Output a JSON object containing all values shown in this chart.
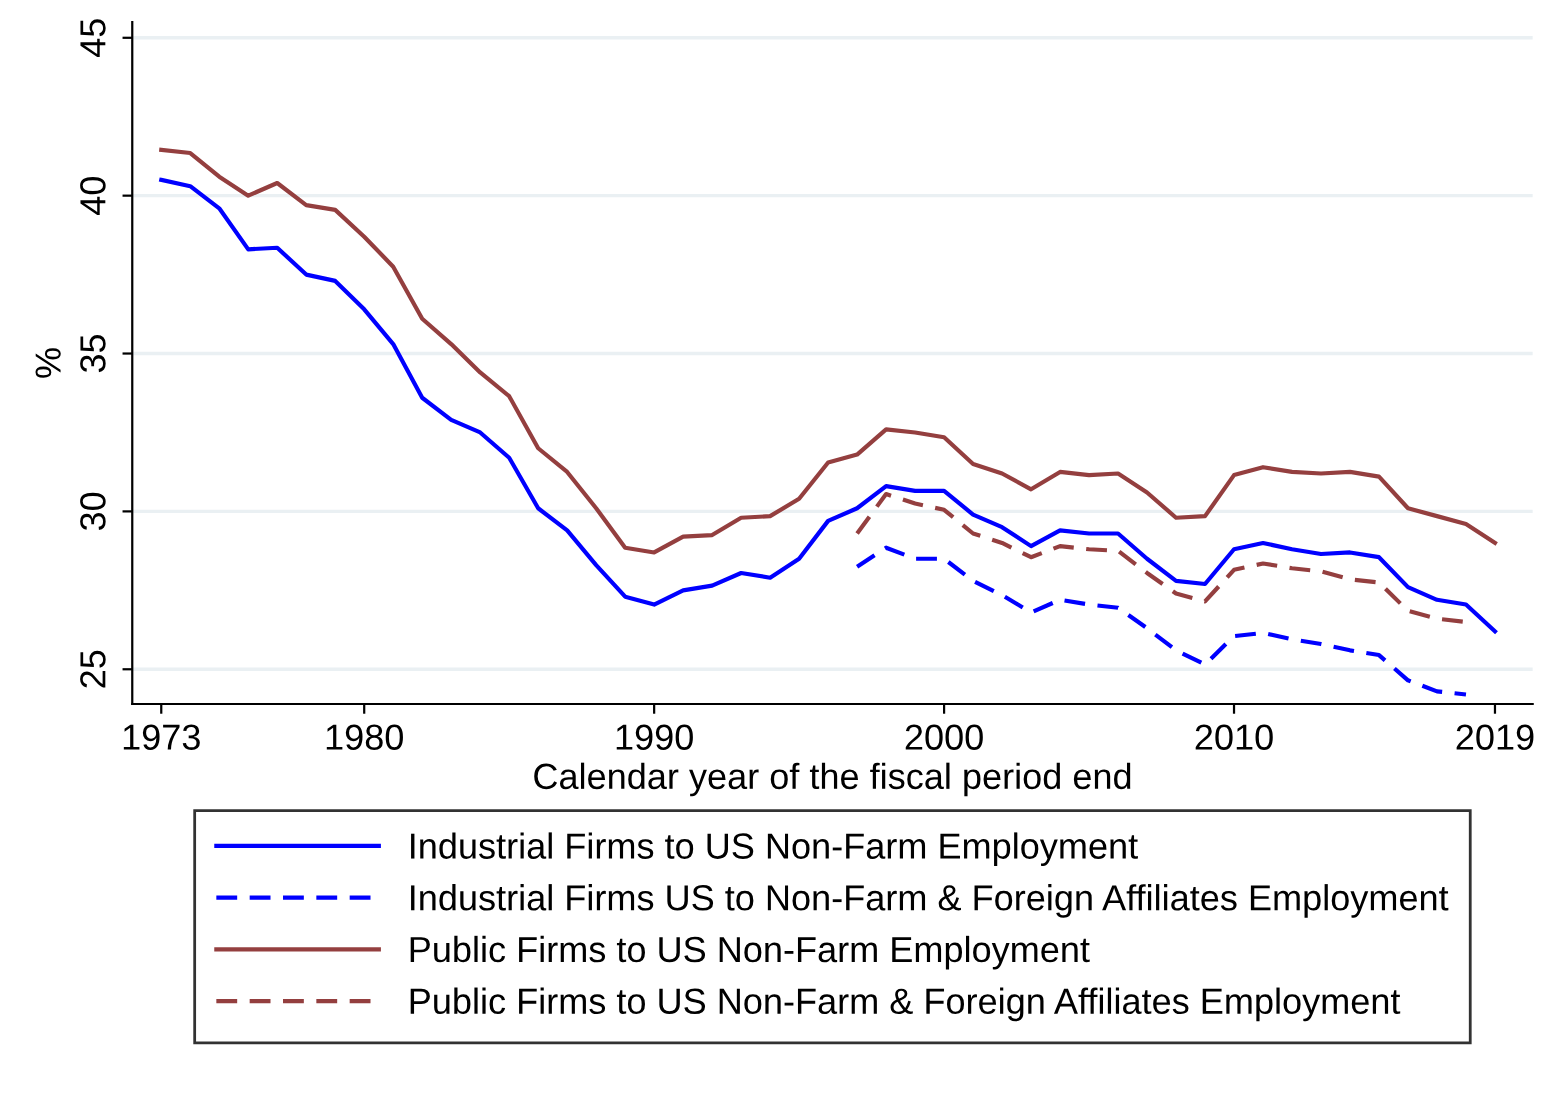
{
  "chart_data": {
    "type": "line",
    "xlabel": "Calendar year of the fiscal period end",
    "ylabel": "%",
    "xlim": [
      1972,
      2020.3
    ],
    "ylim": [
      23.9,
      45.5
    ],
    "xticks": [
      1973,
      1980,
      1990,
      2000,
      2010,
      2019
    ],
    "yticks": [
      25,
      30,
      35,
      40,
      45
    ],
    "grid": "y",
    "legend": "bottom",
    "marker": "none",
    "series": [
      {
        "name": "Industrial Firms to US Non-Farm Employment",
        "color": "#0000ff",
        "line_style": "solid",
        "x": [
          1973,
          1974,
          1975,
          1976,
          1977,
          1978,
          1979,
          1980,
          1981,
          1982,
          1983,
          1984,
          1985,
          1986,
          1987,
          1988,
          1989,
          1990,
          1991,
          1992,
          1993,
          1994,
          1995,
          1996,
          1997,
          1998,
          1999,
          2000,
          2001,
          2002,
          2003,
          2004,
          2005,
          2006,
          2007,
          2008,
          2009,
          2010,
          2011,
          2012,
          2013,
          2014,
          2015,
          2016,
          2017,
          2018,
          2019
        ],
        "values": [
          40.5,
          40.3,
          39.6,
          38.3,
          38.35,
          37.5,
          37.3,
          36.4,
          35.3,
          33.6,
          32.9,
          32.5,
          31.7,
          30.1,
          29.4,
          28.3,
          27.3,
          27.05,
          27.5,
          27.65,
          28.05,
          27.9,
          28.5,
          29.7,
          30.1,
          30.8,
          30.65,
          30.65,
          29.9,
          29.5,
          28.9,
          29.4,
          29.3,
          29.3,
          28.5,
          27.8,
          27.7,
          28.8,
          29.0,
          28.8,
          28.65,
          28.7,
          28.55,
          27.6,
          27.2,
          27.05,
          26.2
        ]
      },
      {
        "name": "Industrial Firms US to Non-Farm & Foreign Affiliates Employment",
        "color": "#0000ff",
        "line_style": "dashed",
        "x": [
          1997,
          1998,
          1999,
          2000,
          2001,
          2002,
          2003,
          2004,
          2005,
          2006,
          2007,
          2008,
          2009,
          2010,
          2011,
          2012,
          2013,
          2014,
          2015,
          2016,
          2017,
          2018
        ],
        "values": [
          28.25,
          28.85,
          28.5,
          28.5,
          27.8,
          27.35,
          26.8,
          27.2,
          27.05,
          26.95,
          26.3,
          25.6,
          25.15,
          26.05,
          26.15,
          25.95,
          25.8,
          25.6,
          25.45,
          24.65,
          24.3,
          24.2
        ]
      },
      {
        "name": "Public Firms to US Non-Farm Employment",
        "color": "#943f3f",
        "line_style": "solid",
        "x": [
          1973,
          1974,
          1975,
          1976,
          1977,
          1978,
          1979,
          1980,
          1981,
          1982,
          1983,
          1984,
          1985,
          1986,
          1987,
          1988,
          1989,
          1990,
          1991,
          1992,
          1993,
          1994,
          1995,
          1996,
          1997,
          1998,
          1999,
          2000,
          2001,
          2002,
          2003,
          2004,
          2005,
          2006,
          2007,
          2008,
          2009,
          2010,
          2011,
          2012,
          2013,
          2014,
          2015,
          2016,
          2017,
          2018,
          2019
        ],
        "values": [
          41.45,
          41.35,
          40.6,
          40.0,
          40.4,
          39.7,
          39.55,
          38.7,
          37.75,
          36.1,
          35.3,
          34.4,
          33.65,
          32.0,
          31.25,
          30.1,
          28.85,
          28.7,
          29.2,
          29.25,
          29.8,
          29.85,
          30.4,
          31.55,
          31.8,
          32.6,
          32.5,
          32.35,
          31.5,
          31.2,
          30.7,
          31.25,
          31.15,
          31.2,
          30.6,
          29.8,
          29.85,
          31.15,
          31.4,
          31.25,
          31.2,
          31.25,
          31.1,
          30.1,
          29.85,
          29.6,
          29.0
        ]
      },
      {
        "name": "Public Firms to US Non-Farm & Foreign Affiliates Employment",
        "color": "#943f3f",
        "line_style": "dashed",
        "x": [
          1997,
          1998,
          1999,
          2000,
          2001,
          2002,
          2003,
          2004,
          2005,
          2006,
          2007,
          2008,
          2009,
          2010,
          2011,
          2012,
          2013,
          2014,
          2015,
          2016,
          2017,
          2018
        ],
        "values": [
          29.3,
          30.55,
          30.25,
          30.05,
          29.3,
          29.0,
          28.55,
          28.9,
          28.8,
          28.75,
          28.05,
          27.4,
          27.15,
          28.15,
          28.35,
          28.2,
          28.1,
          27.85,
          27.75,
          26.85,
          26.6,
          26.5
        ]
      }
    ]
  }
}
